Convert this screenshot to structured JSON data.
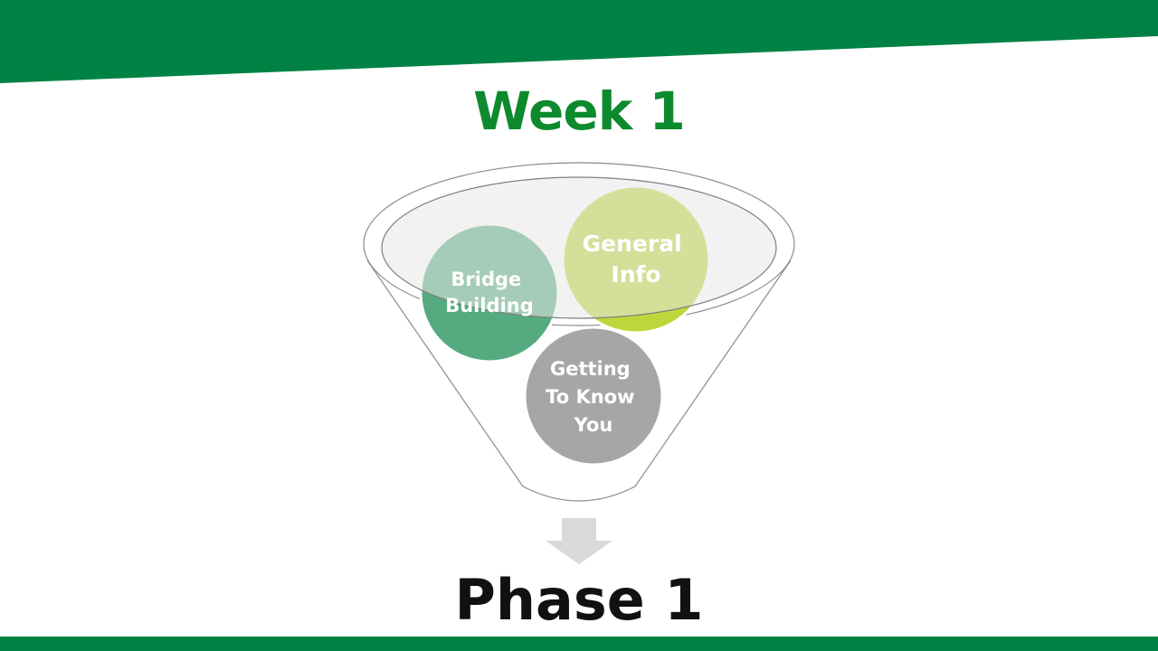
{
  "slide": {
    "title": "Week 1",
    "footer_title": "Phase 1"
  },
  "funnel": {
    "items": [
      {
        "label_lines": [
          "Bridge",
          "Building"
        ],
        "color": "#55AB7F"
      },
      {
        "label_lines": [
          "General",
          "Info"
        ],
        "color": "#BED63A"
      },
      {
        "label_lines": [
          "Getting",
          "To Know",
          "You"
        ],
        "color": "#A6A6A6"
      }
    ],
    "arrow_icon": "arrow-down-icon"
  },
  "colors": {
    "brand_green": "#008244",
    "title_green": "#0E8A2E",
    "funnel_rim": "#E8E8E8",
    "arrow_gray": "#D9D9D9"
  }
}
